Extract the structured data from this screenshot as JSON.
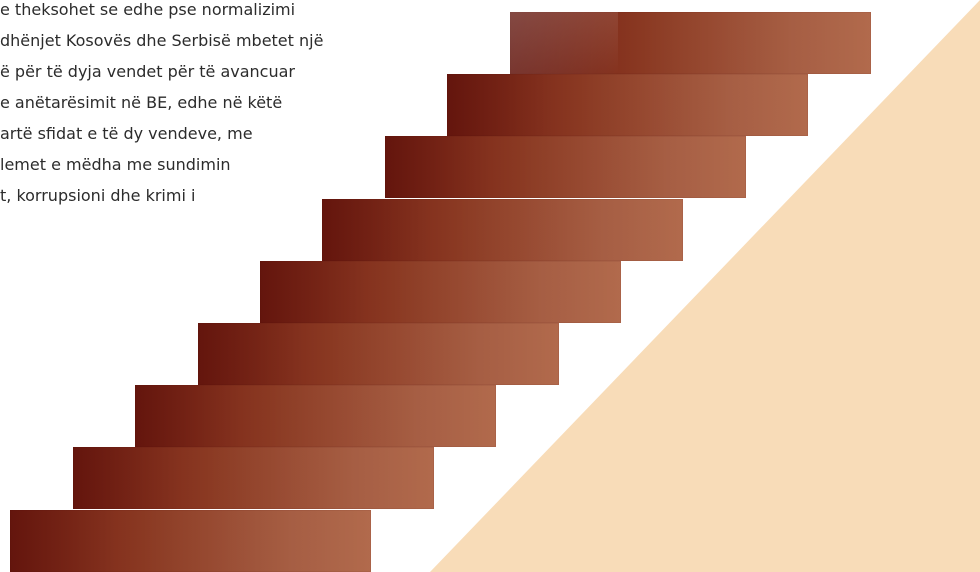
{
  "text_block": {
    "lines": [
      "e theksohet se edhe pse normalizimi",
      "dhënjet Kosovës dhe Serbisë mbetet një",
      "ë për të dyja vendet për të avancuar",
      "e anëtarësimit në BE, edhe në këtë",
      "artë sfidat e të dy vendeve, me",
      "lemet e mëdha me sundimin",
      "t, korrupsioni dhe krimi i"
    ]
  },
  "colors": {
    "background": "#ffffff",
    "triangle_fill": "#f8dcb8",
    "step_dark": "#6f170e",
    "step_mid": "#8b3a23",
    "step_light": "#b06749",
    "text": "#2c2c2c"
  }
}
